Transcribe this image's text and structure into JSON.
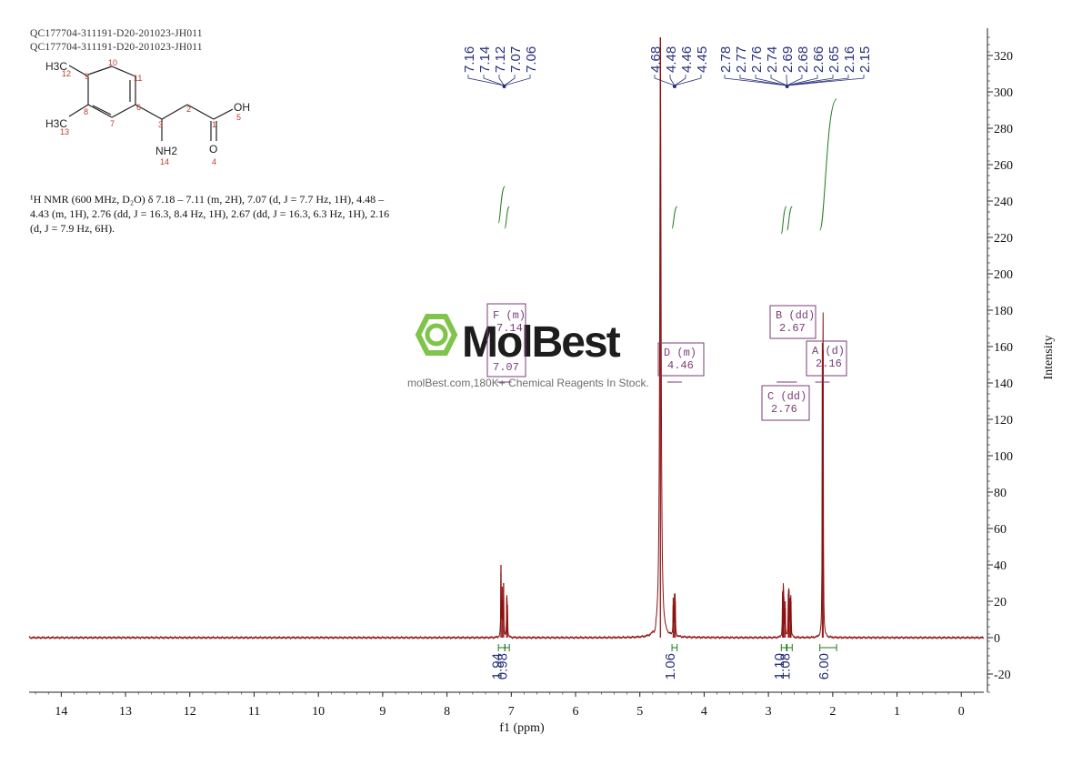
{
  "header": {
    "line1": "QC177704-311191-D20-201023-JH011",
    "line2": "QC177704-311191-D20-201023-JH011"
  },
  "description": "¹H NMR (600 MHz, D₂O) δ 7.18 – 7.11 (m, 2H), 7.07 (d, J = 7.7 Hz, 1H), 4.48 – 4.43 (m, 1H), 2.76 (dd, J = 16.3, 8.4 Hz, 1H), 2.67 (dd, J = 16.3, 6.3 Hz, 1H), 2.16 (d, J = 7.9 Hz, 6H).",
  "structure": {
    "labels": [
      "H3C",
      "12",
      "10",
      "9",
      "11",
      "6",
      "8",
      "7",
      "H3C",
      "13",
      "3",
      "2",
      "1",
      "OH",
      "5",
      "NH2",
      "14",
      "O",
      "4"
    ]
  },
  "watermark": {
    "brand": "MolBest",
    "tagline": "molBest.com,180K+ Chemical Reagents In Stock."
  },
  "chart_data": {
    "type": "line",
    "xlabel": "f1 (ppm)",
    "ylabel": "Intensity",
    "xlim": [
      14.5,
      -0.35
    ],
    "ylim": [
      -30,
      335
    ],
    "x_ticks": [
      14,
      13,
      12,
      11,
      10,
      9,
      8,
      7,
      6,
      5,
      4,
      3,
      2,
      1,
      0
    ],
    "y_ticks": [
      -20,
      0,
      20,
      40,
      60,
      80,
      100,
      120,
      140,
      160,
      180,
      200,
      220,
      240,
      260,
      280,
      300,
      320
    ],
    "peaks": [
      {
        "ppm": 7.16,
        "height": 40
      },
      {
        "ppm": 7.14,
        "height": 28
      },
      {
        "ppm": 7.12,
        "height": 30
      },
      {
        "ppm": 7.07,
        "height": 22
      },
      {
        "ppm": 7.06,
        "height": 18
      },
      {
        "ppm": 4.68,
        "height": 330
      },
      {
        "ppm": 4.48,
        "height": 22
      },
      {
        "ppm": 4.46,
        "height": 24
      },
      {
        "ppm": 4.45,
        "height": 20
      },
      {
        "ppm": 2.78,
        "height": 22
      },
      {
        "ppm": 2.77,
        "height": 26
      },
      {
        "ppm": 2.76,
        "height": 22
      },
      {
        "ppm": 2.74,
        "height": 20
      },
      {
        "ppm": 2.69,
        "height": 24
      },
      {
        "ppm": 2.68,
        "height": 26
      },
      {
        "ppm": 2.66,
        "height": 22
      },
      {
        "ppm": 2.65,
        "height": 20
      },
      {
        "ppm": 2.16,
        "height": 162
      },
      {
        "ppm": 2.15,
        "height": 158
      }
    ],
    "peak_label_groups": [
      {
        "labels": [
          "7.16",
          "7.14",
          "7.12",
          "7.07",
          "7.06"
        ],
        "center": 7.11
      },
      {
        "labels": [
          "4.68",
          "4.48",
          "4.46",
          "4.45"
        ],
        "center": 4.46
      },
      {
        "labels": [
          "2.78",
          "2.77",
          "2.76",
          "2.74",
          "2.69",
          "2.68",
          "2.66",
          "2.65",
          "2.16",
          "2.15"
        ],
        "center": 2.71
      }
    ],
    "integrals": [
      {
        "from": 7.2,
        "to": 7.1,
        "value": "1.94",
        "y_start": 228,
        "y_end": 248
      },
      {
        "from": 7.1,
        "to": 7.03,
        "value": "0.98",
        "y_start": 225,
        "y_end": 237
      },
      {
        "from": 4.5,
        "to": 4.42,
        "value": "1.06",
        "y_start": 225,
        "y_end": 237
      },
      {
        "from": 2.8,
        "to": 2.72,
        "value": "1.10",
        "y_start": 222,
        "y_end": 237
      },
      {
        "from": 2.71,
        "to": 2.63,
        "value": "1.08",
        "y_start": 224,
        "y_end": 237
      },
      {
        "from": 2.2,
        "to": 1.94,
        "value": "6.00",
        "y_start": 224,
        "y_end": 296
      }
    ],
    "multiplets": [
      {
        "id": "F",
        "type": "(m)",
        "shift": "7.14",
        "extra": "7.07",
        "ppm": 7.11
      },
      {
        "id": "D",
        "type": "(m)",
        "shift": "4.46",
        "ppm": 4.46
      },
      {
        "id": "B",
        "type": "(dd)",
        "shift": "2.67",
        "ppm": 2.67
      },
      {
        "id": "C",
        "type": "(dd)",
        "shift": "2.76",
        "ppm": 2.76
      },
      {
        "id": "A",
        "type": "(d)",
        "shift": "2.16",
        "ppm": 2.16
      }
    ],
    "colors": {
      "spectrum": "#8b1010",
      "integral": "#1e7a1e",
      "peak_label": "#27307a",
      "multiplet": "#7a3d7a",
      "axis": "#222222"
    }
  }
}
